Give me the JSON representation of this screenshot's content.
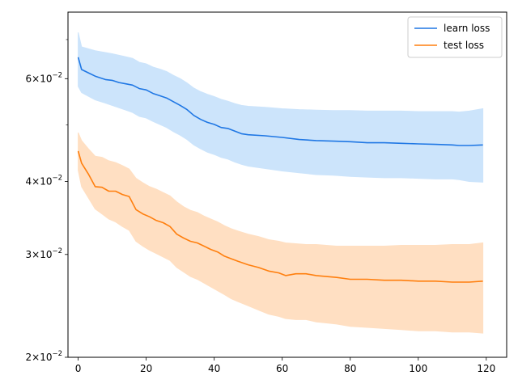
{
  "chart_data": {
    "type": "line",
    "title": "",
    "xlabel": "",
    "ylabel": "",
    "xlim": [
      -3,
      126
    ],
    "ylim": [
      0.02,
      0.078
    ],
    "yscale": "log",
    "grid": false,
    "legend_position": "top-right",
    "x_ticks": [
      {
        "value": 0,
        "label": "0"
      },
      {
        "value": 20,
        "label": "20"
      },
      {
        "value": 40,
        "label": "40"
      },
      {
        "value": 60,
        "label": "60"
      },
      {
        "value": 80,
        "label": "80"
      },
      {
        "value": 100,
        "label": "100"
      },
      {
        "value": 120,
        "label": "120"
      }
    ],
    "y_major_ticks": [
      {
        "value": 0.02,
        "mantissa": "2",
        "base": "10",
        "exp": "−2"
      },
      {
        "value": 0.03,
        "mantissa": "3",
        "base": "10",
        "exp": "−2"
      },
      {
        "value": 0.04,
        "mantissa": "4",
        "base": "10",
        "exp": "−2"
      },
      {
        "value": 0.06,
        "mantissa": "6",
        "base": "10",
        "exp": "−2"
      }
    ],
    "y_minor_ticks": [
      0.05,
      0.07
    ],
    "series": [
      {
        "name": "learn loss",
        "color": "#1f77e4",
        "band_color": "#cce4fb",
        "x": [
          0,
          1,
          3,
          5,
          8,
          10,
          12,
          14,
          16,
          18,
          20,
          22,
          24,
          26,
          28,
          30,
          32,
          34,
          36,
          38,
          40,
          42,
          44,
          46,
          48,
          50,
          55,
          60,
          65,
          70,
          75,
          80,
          85,
          90,
          95,
          100,
          105,
          110,
          112,
          115,
          119
        ],
        "y": [
          0.0653,
          0.0622,
          0.0614,
          0.0606,
          0.0598,
          0.0596,
          0.0591,
          0.0588,
          0.0585,
          0.0577,
          0.0574,
          0.0566,
          0.0561,
          0.0556,
          0.0548,
          0.054,
          0.0531,
          0.0519,
          0.0511,
          0.0505,
          0.0501,
          0.0495,
          0.0493,
          0.0488,
          0.0483,
          0.0481,
          0.0479,
          0.0476,
          0.0472,
          0.047,
          0.0469,
          0.0468,
          0.0466,
          0.0466,
          0.0465,
          0.0464,
          0.0463,
          0.0462,
          0.0461,
          0.0461,
          0.0462
        ],
        "upper": [
          0.072,
          0.068,
          0.0675,
          0.067,
          0.0665,
          0.0662,
          0.0658,
          0.0654,
          0.065,
          0.064,
          0.0636,
          0.0628,
          0.0623,
          0.0617,
          0.0608,
          0.06,
          0.059,
          0.0578,
          0.057,
          0.0564,
          0.0559,
          0.0553,
          0.0549,
          0.0544,
          0.054,
          0.0538,
          0.0536,
          0.0533,
          0.0531,
          0.053,
          0.0529,
          0.0529,
          0.0528,
          0.0528,
          0.0528,
          0.0527,
          0.0527,
          0.0527,
          0.0526,
          0.0528,
          0.0533
        ],
        "lower": [
          0.0582,
          0.0568,
          0.056,
          0.0552,
          0.0545,
          0.054,
          0.0535,
          0.053,
          0.0525,
          0.0517,
          0.0514,
          0.0507,
          0.0501,
          0.0495,
          0.0487,
          0.048,
          0.0472,
          0.0462,
          0.0455,
          0.0449,
          0.0445,
          0.044,
          0.0437,
          0.0432,
          0.0428,
          0.0425,
          0.0421,
          0.0417,
          0.0414,
          0.0411,
          0.041,
          0.0408,
          0.0407,
          0.0406,
          0.0406,
          0.0405,
          0.0404,
          0.0404,
          0.0403,
          0.04,
          0.0399
        ]
      },
      {
        "name": "test loss",
        "color": "#ff7f0e",
        "band_color": "#ffdfc2",
        "x": [
          0,
          1,
          3,
          5,
          7,
          9,
          11,
          13,
          15,
          17,
          19,
          21,
          23,
          25,
          27,
          29,
          31,
          33,
          35,
          37,
          39,
          41,
          43,
          45,
          47,
          50,
          53,
          56,
          59,
          61,
          64,
          67,
          70,
          73,
          76,
          80,
          85,
          90,
          95,
          100,
          105,
          110,
          115,
          119
        ],
        "y": [
          0.0451,
          0.043,
          0.0412,
          0.0392,
          0.0391,
          0.0385,
          0.0385,
          0.038,
          0.0377,
          0.0358,
          0.0352,
          0.0348,
          0.0343,
          0.034,
          0.0335,
          0.0325,
          0.032,
          0.0316,
          0.0314,
          0.031,
          0.0306,
          0.0303,
          0.0298,
          0.0295,
          0.0292,
          0.0288,
          0.0285,
          0.0281,
          0.0279,
          0.0276,
          0.0278,
          0.0278,
          0.0276,
          0.0275,
          0.0274,
          0.0272,
          0.0272,
          0.0271,
          0.0271,
          0.027,
          0.027,
          0.0269,
          0.0269,
          0.027
        ],
        "upper": [
          0.0485,
          0.047,
          0.0455,
          0.0442,
          0.044,
          0.0434,
          0.0431,
          0.0426,
          0.042,
          0.0405,
          0.0398,
          0.0392,
          0.0388,
          0.0383,
          0.0378,
          0.0369,
          0.0362,
          0.0357,
          0.0354,
          0.0349,
          0.0345,
          0.0341,
          0.0336,
          0.0332,
          0.0329,
          0.0325,
          0.0322,
          0.0318,
          0.0316,
          0.0314,
          0.0313,
          0.0312,
          0.0312,
          0.0311,
          0.031,
          0.031,
          0.031,
          0.031,
          0.0311,
          0.0311,
          0.0311,
          0.0312,
          0.0312,
          0.0314
        ],
        "lower": [
          0.0418,
          0.0392,
          0.0375,
          0.0359,
          0.0352,
          0.0345,
          0.0341,
          0.0335,
          0.033,
          0.0316,
          0.031,
          0.0305,
          0.0301,
          0.0297,
          0.0293,
          0.0285,
          0.028,
          0.0275,
          0.0272,
          0.0268,
          0.0264,
          0.026,
          0.0256,
          0.0252,
          0.0249,
          0.0245,
          0.0241,
          0.0237,
          0.0235,
          0.0233,
          0.0232,
          0.0232,
          0.023,
          0.0229,
          0.0228,
          0.0226,
          0.0225,
          0.0224,
          0.0223,
          0.0222,
          0.0222,
          0.0221,
          0.0221,
          0.022
        ]
      }
    ]
  }
}
